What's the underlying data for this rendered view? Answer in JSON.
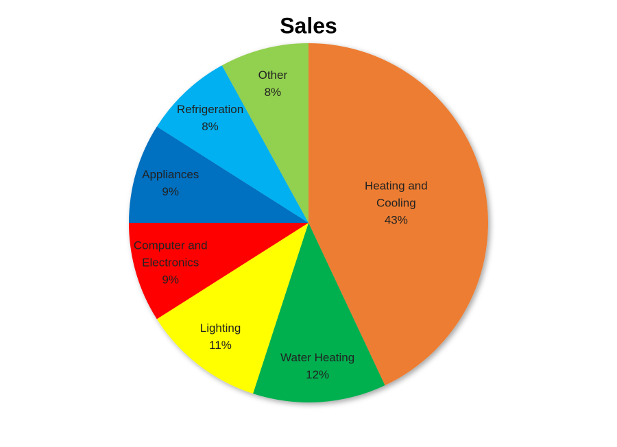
{
  "chart_data": {
    "type": "pie",
    "title": "Sales",
    "categories": [
      "Heating and Cooling",
      "Water Heating",
      "Lighting",
      "Computer and Electronics",
      "Appliances",
      "Refrigeration",
      "Other"
    ],
    "values": [
      43,
      12,
      11,
      9,
      9,
      8,
      8
    ],
    "value_labels": [
      "43%",
      "12%",
      "11%",
      "9%",
      "9%",
      "8%",
      "8%"
    ],
    "colors": [
      "#ed7d31",
      "#00b050",
      "#ffff00",
      "#ff0000",
      "#0070c0",
      "#00b0f0",
      "#92d050"
    ]
  }
}
